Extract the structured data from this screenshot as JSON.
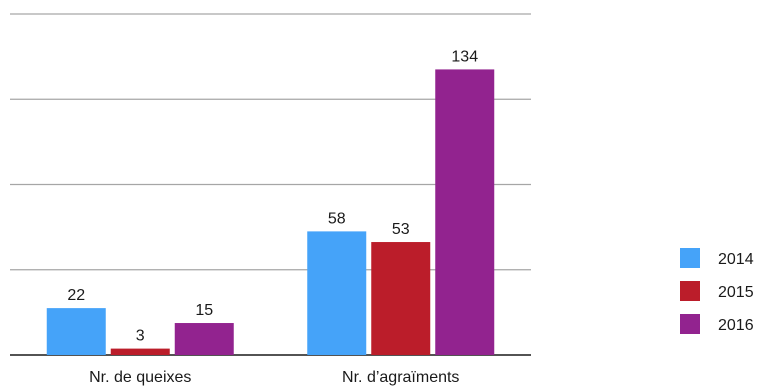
{
  "chart_data": {
    "type": "bar",
    "categories": [
      "Nr. de queixes",
      "Nr. d’agraïments"
    ],
    "series": [
      {
        "name": "2014",
        "color": "#45a3f9",
        "values": [
          22,
          58
        ]
      },
      {
        "name": "2015",
        "color": "#bb1d2a",
        "values": [
          3,
          53
        ]
      },
      {
        "name": "2016",
        "color": "#92238f",
        "values": [
          15,
          134
        ]
      }
    ],
    "ylim": [
      0,
      160
    ],
    "yticks": [
      0,
      40,
      80,
      120,
      160
    ],
    "grid": true,
    "legend": "right",
    "title": "",
    "xlabel": "",
    "ylabel": ""
  }
}
